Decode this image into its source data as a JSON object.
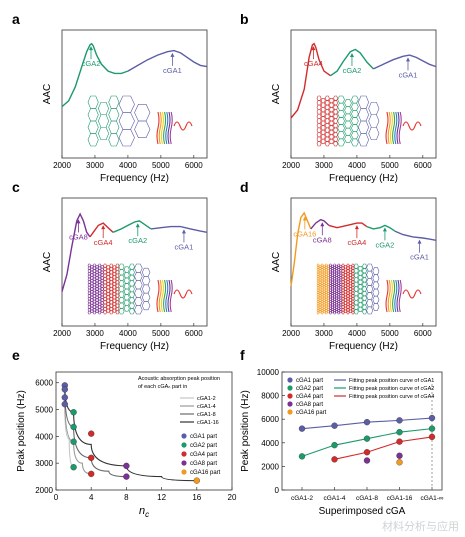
{
  "watermark": "材料分析与应用",
  "top_panels": {
    "xticks": [
      2000,
      3000,
      4000,
      5000,
      6000
    ],
    "xlabel": "Frequency (Hz)",
    "ylabel": "AAC",
    "xlim": [
      2000,
      6400
    ]
  },
  "colors": {
    "cGA1": "#5b5ea6",
    "cGA2": "#1c9a6a",
    "cGA4": "#d22b2b",
    "cGA8": "#7b3294",
    "cGA16": "#f29a1f"
  },
  "chart_data": [
    {
      "panel": "a",
      "type": "line",
      "xlabel": "Frequency (Hz)",
      "ylabel": "AAC",
      "xlim": [
        2000,
        6400
      ],
      "segments": [
        {
          "color": "cGA2",
          "x": [
            2000,
            2200,
            2400,
            2600,
            2750,
            2850,
            2900,
            2950,
            3050,
            3200,
            3400,
            3600,
            3800,
            4000
          ],
          "y": [
            0.45,
            0.5,
            0.62,
            0.8,
            0.93,
            0.99,
            1.0,
            0.98,
            0.9,
            0.82,
            0.76,
            0.74,
            0.74,
            0.76
          ]
        },
        {
          "color": "cGA1",
          "x": [
            4000,
            4300,
            4600,
            4900,
            5200,
            5400,
            5600,
            5800,
            6000,
            6200,
            6400
          ],
          "y": [
            0.76,
            0.81,
            0.86,
            0.9,
            0.93,
            0.94,
            0.92,
            0.88,
            0.84,
            0.81,
            0.8
          ]
        }
      ],
      "annotations": [
        {
          "text": "cGA2",
          "color": "cGA2",
          "x": 2880
        },
        {
          "text": "cGA1",
          "color": "cGA1",
          "x": 5350
        }
      ]
    },
    {
      "panel": "b",
      "type": "line",
      "xlabel": "Frequency (Hz)",
      "ylabel": "AAC",
      "xlim": [
        2000,
        6400
      ],
      "segments": [
        {
          "color": "cGA4",
          "x": [
            2000,
            2200,
            2400,
            2550,
            2650,
            2700,
            2750,
            2850,
            3000,
            3200
          ],
          "y": [
            0.35,
            0.42,
            0.6,
            0.88,
            0.99,
            1.0,
            0.97,
            0.86,
            0.76,
            0.72
          ]
        },
        {
          "color": "cGA2",
          "x": [
            3200,
            3400,
            3600,
            3800,
            3950,
            4100,
            4300,
            4500
          ],
          "y": [
            0.72,
            0.76,
            0.85,
            0.93,
            0.95,
            0.92,
            0.84,
            0.78
          ]
        },
        {
          "color": "cGA1",
          "x": [
            4500,
            4800,
            5100,
            5400,
            5600,
            5800,
            6000,
            6200,
            6400
          ],
          "y": [
            0.78,
            0.82,
            0.86,
            0.89,
            0.9,
            0.88,
            0.85,
            0.82,
            0.8
          ]
        }
      ],
      "annotations": [
        {
          "text": "cGA4",
          "color": "cGA4",
          "x": 2680
        },
        {
          "text": "cGA2",
          "color": "cGA2",
          "x": 3850
        },
        {
          "text": "cGA1",
          "color": "cGA1",
          "x": 5550
        }
      ]
    },
    {
      "panel": "c",
      "type": "line",
      "xlabel": "Frequency (Hz)",
      "ylabel": "AAC",
      "xlim": [
        2000,
        6400
      ],
      "segments": [
        {
          "color": "cGA8",
          "x": [
            2000,
            2150,
            2300,
            2450,
            2550,
            2650,
            2750,
            2850
          ],
          "y": [
            0.3,
            0.45,
            0.7,
            0.92,
            0.98,
            0.92,
            0.82,
            0.78
          ]
        },
        {
          "color": "cGA4",
          "x": [
            2850,
            2950,
            3100,
            3250,
            3400,
            3550
          ],
          "y": [
            0.78,
            0.82,
            0.88,
            0.9,
            0.86,
            0.82
          ]
        },
        {
          "color": "cGA2",
          "x": [
            3550,
            3800,
            4000,
            4200,
            4350,
            4500,
            4700
          ],
          "y": [
            0.82,
            0.85,
            0.88,
            0.91,
            0.92,
            0.89,
            0.85
          ]
        },
        {
          "color": "cGA1",
          "x": [
            4700,
            5000,
            5300,
            5600,
            5900,
            6200,
            6400
          ],
          "y": [
            0.85,
            0.86,
            0.87,
            0.87,
            0.85,
            0.83,
            0.82
          ]
        }
      ],
      "annotations": [
        {
          "text": "cGA8",
          "color": "cGA8",
          "x": 2500
        },
        {
          "text": "cGA4",
          "color": "cGA4",
          "x": 3250
        },
        {
          "text": "cGA2",
          "color": "cGA2",
          "x": 4300
        },
        {
          "text": "cGA1",
          "color": "cGA1",
          "x": 5700
        }
      ]
    },
    {
      "panel": "d",
      "type": "line",
      "xlabel": "Frequency (Hz)",
      "ylabel": "AAC",
      "xlim": [
        2000,
        6400
      ],
      "segments": [
        {
          "color": "cGA16",
          "x": [
            2000,
            2100,
            2200,
            2300,
            2400,
            2500,
            2600
          ],
          "y": [
            0.35,
            0.55,
            0.8,
            0.95,
            0.99,
            0.92,
            0.85
          ]
        },
        {
          "color": "cGA8",
          "x": [
            2600,
            2750,
            2900,
            3000,
            3150
          ],
          "y": [
            0.85,
            0.9,
            0.93,
            0.92,
            0.88
          ]
        },
        {
          "color": "cGA4",
          "x": [
            3150,
            3400,
            3700,
            4000,
            4150,
            4300
          ],
          "y": [
            0.88,
            0.86,
            0.88,
            0.9,
            0.9,
            0.87
          ]
        },
        {
          "color": "cGA2",
          "x": [
            4300,
            4500,
            4700,
            4850,
            5000,
            5150
          ],
          "y": [
            0.87,
            0.85,
            0.86,
            0.88,
            0.86,
            0.83
          ]
        },
        {
          "color": "cGA1",
          "x": [
            5150,
            5400,
            5700,
            6000,
            6200,
            6400
          ],
          "y": [
            0.83,
            0.8,
            0.78,
            0.77,
            0.76,
            0.75
          ]
        }
      ],
      "annotations": [
        {
          "text": "cGA16",
          "color": "cGA16",
          "x": 2420
        },
        {
          "text": "cGA8",
          "color": "cGA8",
          "x": 2950
        },
        {
          "text": "cGA4",
          "color": "cGA4",
          "x": 4000
        },
        {
          "text": "cGA2",
          "color": "cGA2",
          "x": 4850
        },
        {
          "text": "cGA1",
          "color": "cGA1",
          "x": 5900
        }
      ]
    },
    {
      "panel": "e",
      "type": "scatter",
      "xlabel": "n_c",
      "ylabel": "Peak position (Hz)",
      "xlim": [
        0,
        20
      ],
      "ylim": [
        2000,
        6000
      ],
      "xticks": [
        0,
        4,
        8,
        12,
        16,
        20
      ],
      "yticks": [
        2000,
        3000,
        4000,
        5000,
        6000
      ],
      "legend_title": "Acoustic absorption peak position\nof each cGAₙ part in",
      "curve_legend": [
        {
          "name": "cGA1-2",
          "color": "#c4c4c4"
        },
        {
          "name": "cGA1-4",
          "color": "#9a9a9a"
        },
        {
          "name": "cGA1-8",
          "color": "#6a6a6a"
        },
        {
          "name": "cGA1-16",
          "color": "#333333"
        }
      ],
      "point_legend": [
        {
          "name": "cGA1 part",
          "color": "cGA1"
        },
        {
          "name": "cGA2 part",
          "color": "cGA2"
        },
        {
          "name": "cGA4 part",
          "color": "cGA4"
        },
        {
          "name": "cGA8 part",
          "color": "cGA8"
        },
        {
          "name": "cGA16 part",
          "color": "cGA16"
        }
      ],
      "points": [
        {
          "x": 1,
          "y": 5900,
          "c": "cGA1"
        },
        {
          "x": 1,
          "y": 5750,
          "c": "cGA1"
        },
        {
          "x": 1,
          "y": 5450,
          "c": "cGA1"
        },
        {
          "x": 1,
          "y": 5200,
          "c": "cGA1"
        },
        {
          "x": 2,
          "y": 4900,
          "c": "cGA2"
        },
        {
          "x": 2,
          "y": 4350,
          "c": "cGA2"
        },
        {
          "x": 2,
          "y": 3800,
          "c": "cGA2"
        },
        {
          "x": 2,
          "y": 2850,
          "c": "cGA2"
        },
        {
          "x": 4,
          "y": 4100,
          "c": "cGA4"
        },
        {
          "x": 4,
          "y": 3200,
          "c": "cGA4"
        },
        {
          "x": 4,
          "y": 2600,
          "c": "cGA4"
        },
        {
          "x": 8,
          "y": 2900,
          "c": "cGA8"
        },
        {
          "x": 8,
          "y": 2500,
          "c": "cGA8"
        },
        {
          "x": 16,
          "y": 2350,
          "c": "cGA16"
        }
      ],
      "curves": [
        {
          "name": "cGA1-2",
          "x": [
            1,
            1.5,
            2
          ],
          "y": [
            5200,
            3900,
            2850
          ]
        },
        {
          "name": "cGA1-4",
          "x": [
            1,
            2,
            3,
            4
          ],
          "y": [
            5450,
            3800,
            3000,
            2600
          ]
        },
        {
          "name": "cGA1-8",
          "x": [
            1,
            2,
            4,
            6,
            8
          ],
          "y": [
            5750,
            4350,
            3200,
            2700,
            2500
          ]
        },
        {
          "name": "cGA1-16",
          "x": [
            1,
            2,
            4,
            8,
            12,
            16
          ],
          "y": [
            5900,
            4900,
            3700,
            2900,
            2500,
            2350
          ]
        }
      ]
    },
    {
      "panel": "f",
      "type": "scatter",
      "xlabel": "Superimposed cGA",
      "ylabel": "Peak position (Hz)",
      "categories": [
        "cGA1-2",
        "cGA1-4",
        "cGA1-8",
        "cGA1-16",
        "cGA1-∞"
      ],
      "ylim": [
        0,
        10000
      ],
      "yticks": [
        0,
        2000,
        4000,
        6000,
        8000,
        10000
      ],
      "point_legend": [
        {
          "name": "cGA1 part",
          "color": "cGA1"
        },
        {
          "name": "cGA2 part",
          "color": "cGA2"
        },
        {
          "name": "cGA4 part",
          "color": "cGA4"
        },
        {
          "name": "cGA8 part",
          "color": "cGA8"
        },
        {
          "name": "cGA16 part",
          "color": "cGA16"
        }
      ],
      "fit_legend": [
        {
          "name": "Fitting peak position curve of cGA1",
          "color": "cGA1"
        },
        {
          "name": "Fitting peak position curve of cGA2",
          "color": "cGA2"
        },
        {
          "name": "Fitting peak position curve of cGA4",
          "color": "cGA4"
        }
      ],
      "series": [
        {
          "name": "cGA1 part",
          "c": "cGA1",
          "values": [
            5200,
            5450,
            5750,
            5900,
            6100
          ]
        },
        {
          "name": "cGA2 part",
          "c": "cGA2",
          "values": [
            2850,
            3800,
            4350,
            4900,
            5200
          ]
        },
        {
          "name": "cGA4 part",
          "c": "cGA4",
          "values": [
            null,
            2600,
            3200,
            4100,
            4500
          ]
        },
        {
          "name": "cGA8 part",
          "c": "cGA8",
          "values": [
            null,
            null,
            2500,
            2900,
            null
          ]
        },
        {
          "name": "cGA16 part",
          "c": "cGA16",
          "values": [
            null,
            null,
            null,
            2350,
            null
          ]
        }
      ]
    }
  ]
}
